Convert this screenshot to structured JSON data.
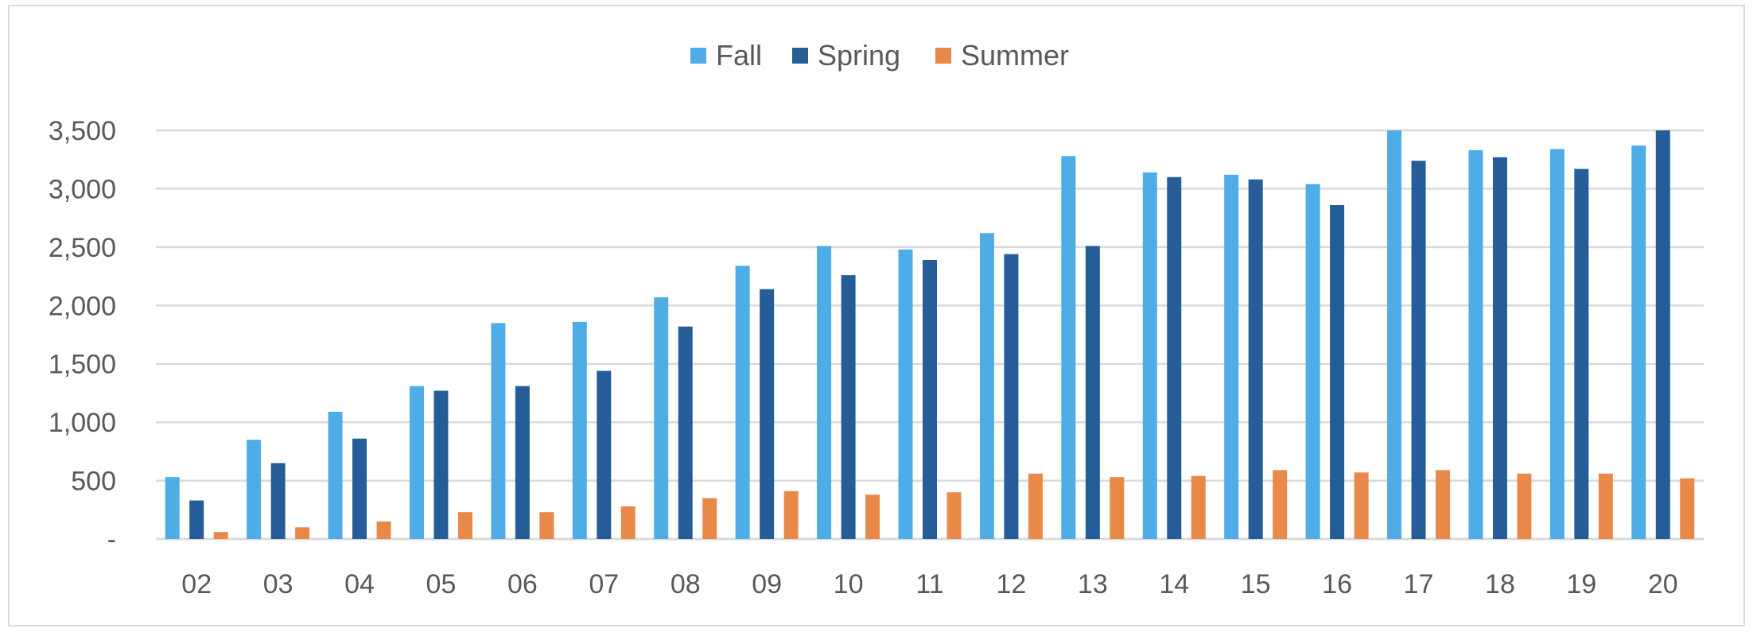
{
  "chart_data": {
    "type": "bar",
    "title": "",
    "xlabel": "",
    "ylabel": "",
    "categories": [
      "02",
      "03",
      "04",
      "05",
      "06",
      "07",
      "08",
      "09",
      "10",
      "11",
      "12",
      "13",
      "14",
      "15",
      "16",
      "17",
      "18",
      "19",
      "20"
    ],
    "series": [
      {
        "name": "Fall",
        "color": "#4eade6",
        "values": [
          530,
          850,
          1090,
          1310,
          1850,
          1860,
          2070,
          2340,
          2510,
          2480,
          2620,
          3280,
          3140,
          3120,
          3040,
          3500,
          3330,
          3340,
          3370
        ]
      },
      {
        "name": "Spring",
        "color": "#255d98",
        "values": [
          330,
          650,
          860,
          1270,
          1310,
          1440,
          1820,
          2140,
          2260,
          2390,
          2440,
          2510,
          3100,
          3080,
          2860,
          3240,
          3270,
          3170,
          3500
        ]
      },
      {
        "name": "Summer",
        "color": "#e8894a",
        "values": [
          60,
          100,
          150,
          230,
          230,
          280,
          350,
          410,
          380,
          400,
          560,
          530,
          540,
          590,
          570,
          590,
          560,
          560,
          520
        ]
      }
    ],
    "ylim": [
      0,
      3500
    ],
    "yticks": [
      0,
      500,
      1000,
      1500,
      2000,
      2500,
      3000,
      3500
    ],
    "ytick_labels": [
      "-",
      "500",
      "1,000",
      "1,500",
      "2,000",
      "2,500",
      "3,000",
      "3,500"
    ],
    "grid": true,
    "legend_position": "top"
  }
}
